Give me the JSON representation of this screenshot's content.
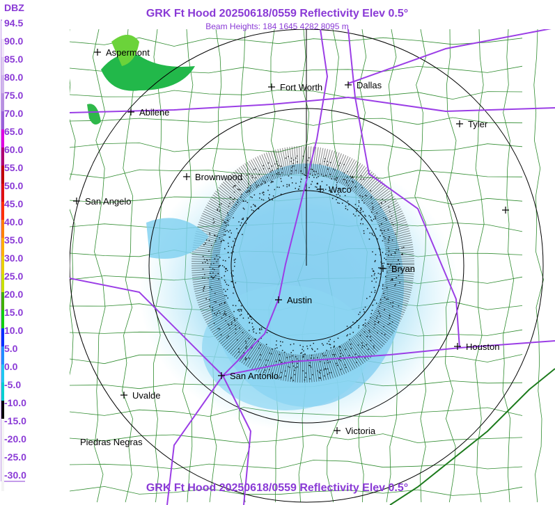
{
  "header": {
    "title": "GRK Ft Hood 20250618/0559 Reflectivity Elev 0.5°",
    "subtitle": "Beam Heights: 184 1645 4282 8095 m"
  },
  "legend": {
    "unit": "DBZ",
    "labels": [
      "94.5",
      "90.0",
      "85.0",
      "80.0",
      "75.0",
      "70.0",
      "65.0",
      "60.0",
      "55.0",
      "50.0",
      "45.0",
      "40.0",
      "35.0",
      "30.0",
      "25.0",
      "20.0",
      "15.0",
      "10.0",
      "5.0",
      "0.0",
      "-5.0",
      "-10.0",
      "-15.0",
      "-20.0",
      "-25.0",
      "-30.0"
    ]
  },
  "cities": [
    {
      "label": "Aspermont"
    },
    {
      "label": "Fort Worth"
    },
    {
      "label": "Dallas"
    },
    {
      "label": "Abilene"
    },
    {
      "label": "Tyler"
    },
    {
      "label": "Brownwood"
    },
    {
      "label": "Waco"
    },
    {
      "label": "San Angelo"
    },
    {
      "label": "Bryan"
    },
    {
      "label": "Austin"
    },
    {
      "label": "Houston"
    },
    {
      "label": "San Antonio"
    },
    {
      "label": "Uvalde"
    },
    {
      "label": "Victoria"
    },
    {
      "label": "Piedras Negras"
    }
  ],
  "footer": {
    "title": "GRK Ft Hood 20250618/0559 Reflectivity Elev 0.5°"
  }
}
